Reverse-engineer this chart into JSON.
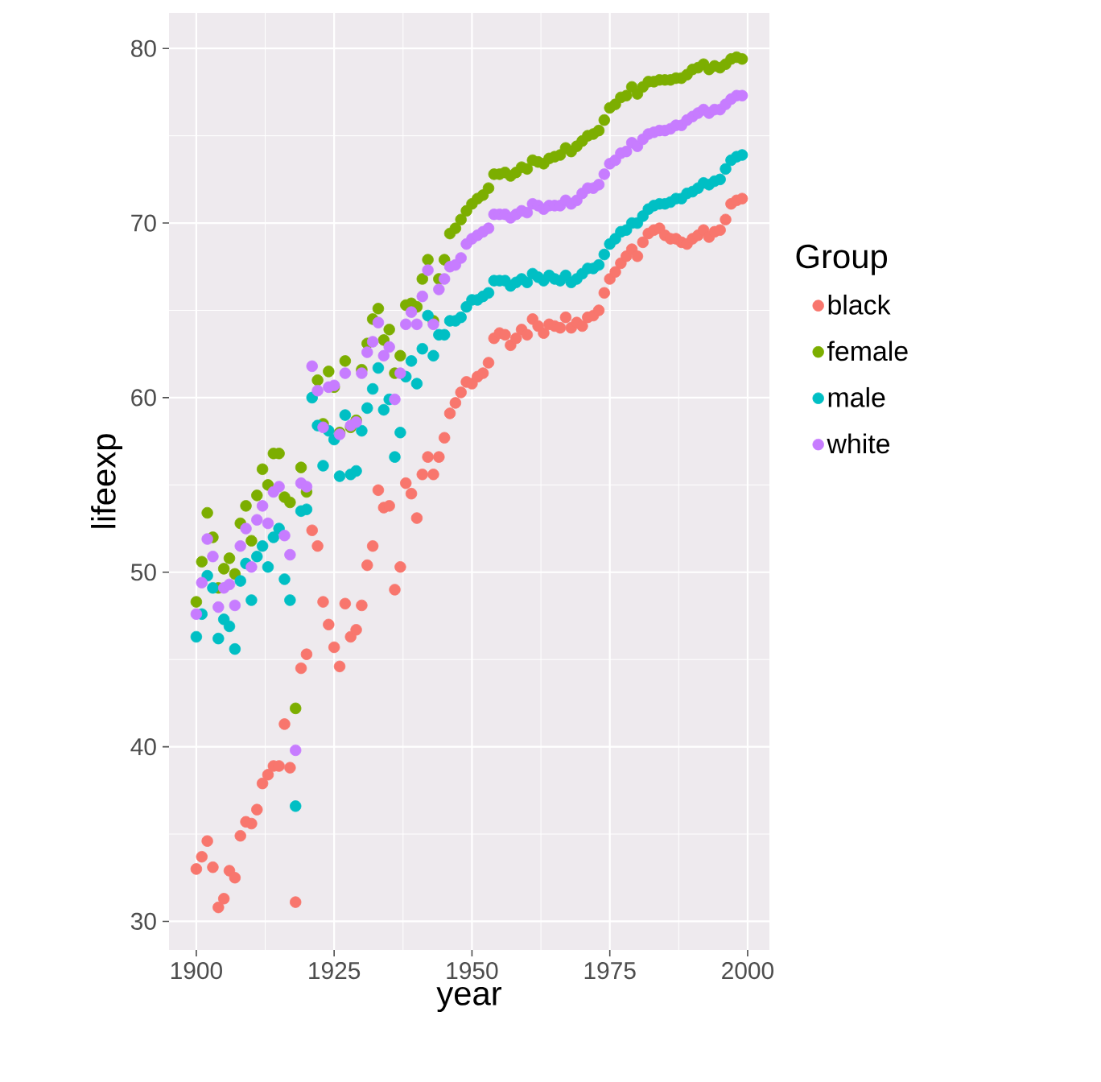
{
  "chart_data": {
    "type": "scatter",
    "xlabel": "year",
    "ylabel": "lifeexp",
    "legend_title": "Group",
    "legend": "right",
    "grid": true,
    "marker": "circle",
    "xlim": [
      1895.05,
      2003.95
    ],
    "ylim": [
      28.36,
      82.04
    ],
    "xticks": [
      1900,
      1925,
      1950,
      1975,
      2000
    ],
    "yticks": [
      30,
      40,
      50,
      60,
      70,
      80
    ],
    "x": [
      1900,
      1901,
      1902,
      1903,
      1904,
      1905,
      1906,
      1907,
      1908,
      1909,
      1910,
      1911,
      1912,
      1913,
      1914,
      1915,
      1916,
      1917,
      1918,
      1919,
      1920,
      1921,
      1922,
      1923,
      1924,
      1925,
      1926,
      1927,
      1928,
      1929,
      1930,
      1931,
      1932,
      1933,
      1934,
      1935,
      1936,
      1937,
      1938,
      1939,
      1940,
      1941,
      1942,
      1943,
      1944,
      1945,
      1946,
      1947,
      1948,
      1949,
      1950,
      1951,
      1952,
      1953,
      1954,
      1955,
      1956,
      1957,
      1958,
      1959,
      1960,
      1961,
      1962,
      1963,
      1964,
      1965,
      1966,
      1967,
      1968,
      1969,
      1970,
      1971,
      1972,
      1973,
      1974,
      1975,
      1976,
      1977,
      1978,
      1979,
      1980,
      1981,
      1982,
      1983,
      1984,
      1985,
      1986,
      1987,
      1988,
      1989,
      1990,
      1991,
      1992,
      1993,
      1994,
      1995,
      1996,
      1997,
      1998,
      1999
    ],
    "series": [
      {
        "name": "black",
        "color": "#f8766d",
        "values": [
          33.0,
          33.7,
          34.6,
          33.1,
          30.8,
          31.3,
          32.9,
          32.5,
          34.9,
          35.7,
          35.6,
          36.4,
          37.9,
          38.4,
          38.9,
          38.9,
          41.3,
          38.8,
          31.1,
          44.5,
          45.3,
          52.4,
          51.5,
          48.3,
          47.0,
          45.7,
          44.6,
          48.2,
          46.3,
          46.7,
          48.1,
          50.4,
          51.5,
          54.7,
          53.7,
          53.8,
          49.0,
          50.3,
          55.1,
          54.5,
          53.1,
          55.6,
          56.6,
          55.6,
          56.6,
          57.7,
          59.1,
          59.7,
          60.3,
          60.9,
          60.8,
          61.2,
          61.4,
          62.0,
          63.4,
          63.7,
          63.6,
          63.0,
          63.4,
          63.9,
          63.6,
          64.5,
          64.1,
          63.7,
          64.2,
          64.1,
          64.0,
          64.6,
          64.0,
          64.3,
          64.1,
          64.6,
          64.7,
          65.0,
          66.0,
          66.8,
          67.2,
          67.7,
          68.1,
          68.5,
          68.1,
          68.9,
          69.4,
          69.6,
          69.7,
          69.3,
          69.1,
          69.1,
          68.9,
          68.8,
          69.1,
          69.3,
          69.6,
          69.2,
          69.5,
          69.6,
          70.2,
          71.1,
          71.3,
          71.4
        ]
      },
      {
        "name": "female",
        "color": "#7cae00",
        "values": [
          48.3,
          50.6,
          53.4,
          52.0,
          49.1,
          50.2,
          50.8,
          49.9,
          52.8,
          53.8,
          51.8,
          54.4,
          55.9,
          55.0,
          56.8,
          56.8,
          54.3,
          54.0,
          42.2,
          56.0,
          54.6,
          null,
          61.0,
          58.5,
          61.5,
          60.6,
          58.0,
          62.1,
          58.3,
          58.7,
          61.6,
          63.1,
          64.5,
          65.1,
          63.3,
          63.9,
          61.4,
          62.4,
          65.3,
          65.4,
          65.2,
          66.8,
          67.9,
          64.4,
          66.8,
          67.9,
          69.4,
          69.7,
          70.2,
          70.7,
          71.1,
          71.4,
          71.6,
          72.0,
          72.8,
          72.8,
          72.9,
          72.7,
          72.9,
          73.2,
          73.1,
          73.6,
          73.5,
          73.4,
          73.7,
          73.8,
          73.9,
          74.3,
          74.1,
          74.4,
          74.7,
          75.0,
          75.1,
          75.3,
          75.9,
          76.6,
          76.8,
          77.2,
          77.3,
          77.8,
          77.4,
          77.8,
          78.1,
          78.1,
          78.2,
          78.2,
          78.2,
          78.3,
          78.3,
          78.5,
          78.8,
          78.9,
          79.1,
          78.8,
          79.0,
          78.9,
          79.1,
          79.4,
          79.5,
          79.4
        ]
      },
      {
        "name": "male",
        "color": "#00bfc4",
        "values": [
          46.3,
          47.6,
          49.8,
          49.1,
          46.2,
          47.3,
          46.9,
          45.6,
          49.5,
          50.5,
          48.4,
          50.9,
          51.5,
          50.3,
          52.0,
          52.5,
          49.6,
          48.4,
          36.6,
          53.5,
          53.6,
          60.0,
          58.4,
          56.1,
          58.1,
          57.6,
          55.5,
          59.0,
          55.6,
          55.8,
          58.1,
          59.4,
          60.5,
          61.7,
          59.3,
          59.9,
          56.6,
          58.0,
          61.2,
          62.1,
          60.8,
          62.8,
          64.7,
          62.4,
          63.6,
          63.6,
          64.4,
          64.4,
          64.6,
          65.2,
          65.6,
          65.6,
          65.8,
          66.0,
          66.7,
          66.7,
          66.7,
          66.4,
          66.6,
          66.8,
          66.6,
          67.1,
          66.9,
          66.7,
          67.0,
          66.8,
          66.7,
          67.0,
          66.6,
          66.8,
          67.1,
          67.4,
          67.4,
          67.6,
          68.2,
          68.8,
          69.1,
          69.5,
          69.6,
          70.0,
          70.0,
          70.4,
          70.8,
          71.0,
          71.1,
          71.1,
          71.2,
          71.4,
          71.4,
          71.7,
          71.8,
          72.0,
          72.3,
          72.2,
          72.4,
          72.5,
          73.1,
          73.6,
          73.8,
          73.9
        ]
      },
      {
        "name": "white",
        "color": "#c77cff",
        "values": [
          47.6,
          49.4,
          51.9,
          50.9,
          48.0,
          49.1,
          49.3,
          48.1,
          51.5,
          52.5,
          50.3,
          53.0,
          53.8,
          52.8,
          54.6,
          54.9,
          52.1,
          51.0,
          39.8,
          55.1,
          54.9,
          61.8,
          60.4,
          58.3,
          60.6,
          60.7,
          57.9,
          61.4,
          58.4,
          58.6,
          61.4,
          62.6,
          63.2,
          64.3,
          62.4,
          62.9,
          59.9,
          61.4,
          64.2,
          64.9,
          64.2,
          65.8,
          67.3,
          64.2,
          66.2,
          66.8,
          67.5,
          67.6,
          68.0,
          68.8,
          69.1,
          69.3,
          69.5,
          69.7,
          70.5,
          70.5,
          70.5,
          70.3,
          70.5,
          70.7,
          70.6,
          71.1,
          71.0,
          70.8,
          71.0,
          71.0,
          71.0,
          71.3,
          71.1,
          71.3,
          71.7,
          72.0,
          72.0,
          72.2,
          72.8,
          73.4,
          73.6,
          74.0,
          74.1,
          74.6,
          74.4,
          74.8,
          75.1,
          75.2,
          75.3,
          75.3,
          75.4,
          75.6,
          75.6,
          75.9,
          76.1,
          76.3,
          76.5,
          76.3,
          76.5,
          76.5,
          76.8,
          77.1,
          77.3,
          77.3
        ]
      }
    ]
  }
}
